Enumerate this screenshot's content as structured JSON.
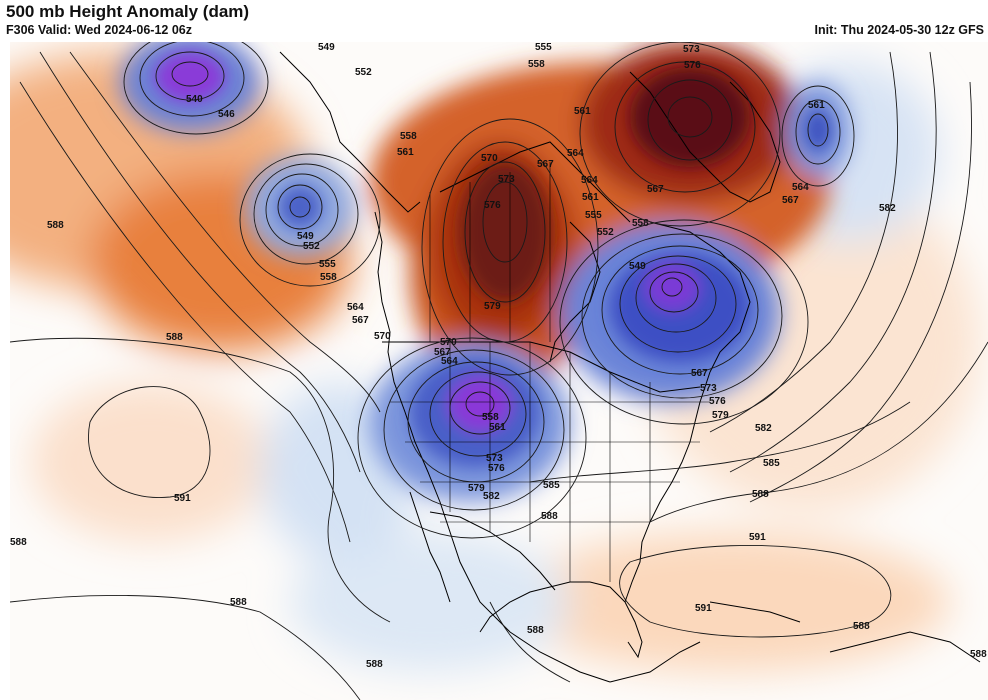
{
  "header": {
    "title": "500 mb Height Anomaly (dam)",
    "valid": "F306 Valid: Wed 2024-06-12 06z",
    "init": "Init: Thu 2024-05-30 12z GFS"
  },
  "colors": {
    "strong_positive": "#5a1018",
    "positive": "#b8400e",
    "weak_positive": "#f0a46e",
    "faint_positive": "#fbe0cc",
    "faint_negative": "#dde8f5",
    "weak_negative": "#a8c4e8",
    "negative": "#4c62c8",
    "strong_negative": "#8a3ad8",
    "contour": "#1a1a1a",
    "coast": "#000000"
  },
  "contour_labels": [
    {
      "text": "549",
      "name": "label-549-pacific-low"
    },
    {
      "text": "540",
      "name": "label-540-pacific-low-center"
    },
    {
      "text": "546",
      "name": "label-546-pacific-low"
    },
    {
      "text": "552",
      "name": "label-552-north-pacific"
    },
    {
      "text": "549",
      "name": "label-549-gulf-of-alaska"
    },
    {
      "text": "552",
      "name": "label-552-gulf-of-alaska"
    },
    {
      "text": "555",
      "name": "label-555-gulf-of-alaska"
    },
    {
      "text": "558",
      "name": "label-558-gulf-of-alaska"
    },
    {
      "text": "564",
      "name": "label-564-pacific-northwest"
    },
    {
      "text": "567",
      "name": "label-567-pacific-northwest"
    },
    {
      "text": "570",
      "name": "label-570-pacific-northwest"
    },
    {
      "text": "588",
      "name": "label-588-central-pacific"
    },
    {
      "text": "588",
      "name": "label-588-west-pacific"
    },
    {
      "text": "591",
      "name": "label-591-subtropical-pacific"
    },
    {
      "text": "588",
      "name": "label-588-southwest"
    },
    {
      "text": "588",
      "name": "label-588-south-pacific"
    },
    {
      "text": "588",
      "name": "label-588-bottom"
    },
    {
      "text": "558",
      "name": "label-558-british-columbia"
    },
    {
      "text": "561",
      "name": "label-561-british-columbia"
    },
    {
      "text": "555",
      "name": "label-555-arctic"
    },
    {
      "text": "558",
      "name": "label-558-arctic"
    },
    {
      "text": "561",
      "name": "label-561-arctic"
    },
    {
      "text": "564",
      "name": "label-564-arctic"
    },
    {
      "text": "567",
      "name": "label-567-arctic"
    },
    {
      "text": "570",
      "name": "label-570-arctic-ridge"
    },
    {
      "text": "573",
      "name": "label-573-arctic-ridge"
    },
    {
      "text": "576",
      "name": "label-576-arctic-ridge"
    },
    {
      "text": "579",
      "name": "label-579-arctic-ridge"
    },
    {
      "text": "564",
      "name": "label-564-hudson"
    },
    {
      "text": "561",
      "name": "label-561-hudson"
    },
    {
      "text": "555",
      "name": "label-555-hudson"
    },
    {
      "text": "558",
      "name": "label-558-hudson"
    },
    {
      "text": "552",
      "name": "label-552-hudson"
    },
    {
      "text": "573",
      "name": "label-573-greenland"
    },
    {
      "text": "576",
      "name": "label-576-greenland"
    },
    {
      "text": "567",
      "name": "label-567-greenland"
    },
    {
      "text": "561",
      "name": "label-561-north-atlantic"
    },
    {
      "text": "564",
      "name": "label-564-north-atlantic"
    },
    {
      "text": "567",
      "name": "label-567-north-atlantic"
    },
    {
      "text": "582",
      "name": "label-582-atlantic"
    },
    {
      "text": "549",
      "name": "label-549-eastern-canada-low"
    },
    {
      "text": "567",
      "name": "label-567-new-england"
    },
    {
      "text": "573",
      "name": "label-573-new-england"
    },
    {
      "text": "576",
      "name": "label-576-new-england"
    },
    {
      "text": "579",
      "name": "label-579-new-england"
    },
    {
      "text": "582",
      "name": "label-582-mid-atlantic"
    },
    {
      "text": "585",
      "name": "label-585-atlantic"
    },
    {
      "text": "588",
      "name": "label-588-atlantic"
    },
    {
      "text": "591",
      "name": "label-591-atlantic"
    },
    {
      "text": "591",
      "name": "label-591-caribbean"
    },
    {
      "text": "588",
      "name": "label-588-caribbean"
    },
    {
      "text": "588",
      "name": "label-588-central-america"
    },
    {
      "text": "588",
      "name": "label-588-far-southeast"
    },
    {
      "text": "570",
      "name": "label-570-rockies"
    },
    {
      "text": "567",
      "name": "label-567-rockies"
    },
    {
      "text": "564",
      "name": "label-564-rockies"
    },
    {
      "text": "558",
      "name": "label-558-southwest-low"
    },
    {
      "text": "561",
      "name": "label-561-southwest-low"
    },
    {
      "text": "573",
      "name": "label-573-southwest"
    },
    {
      "text": "576",
      "name": "label-576-southwest"
    },
    {
      "text": "579",
      "name": "label-579-southwest"
    },
    {
      "text": "582",
      "name": "label-582-southwest"
    },
    {
      "text": "585",
      "name": "label-585-texas"
    },
    {
      "text": "588",
      "name": "label-588-gulf"
    }
  ]
}
